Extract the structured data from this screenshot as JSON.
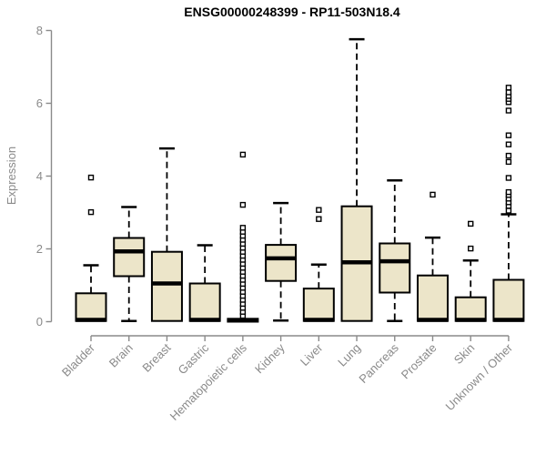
{
  "colors": {
    "box_fill": "#ECE5C9",
    "box_stroke": "#000000",
    "median": "#000000",
    "outlier_fill": "#ffffff",
    "axis": "#8a8a8a",
    "title": "#000000",
    "background": "#ffffff"
  },
  "chart_data": {
    "type": "boxplot",
    "title": "ENSG00000248399 - RP11-503N18.4",
    "ylabel": "Expression",
    "xlabel": "",
    "ylim": [
      0,
      8
    ],
    "yticks": [
      0,
      2,
      4,
      6,
      8
    ],
    "grid": false,
    "legend": "none",
    "categories": [
      "Bladder",
      "Brain",
      "Breast",
      "Gastric",
      "Hematopoietic cells",
      "Kidney",
      "Liver",
      "Lung",
      "Pancreas",
      "Prostate",
      "Skin",
      "Unknown / Other"
    ],
    "boxes": [
      {
        "whisker_low": 0.02,
        "q1": 0.02,
        "median": 0.05,
        "q3": 0.78,
        "whisker_high": 1.55,
        "outliers": [
          3.01,
          3.96
        ]
      },
      {
        "whisker_low": 0.02,
        "q1": 1.25,
        "median": 1.93,
        "q3": 2.3,
        "whisker_high": 3.15,
        "outliers": []
      },
      {
        "whisker_low": 0.02,
        "q1": 0.02,
        "median": 1.05,
        "q3": 1.92,
        "whisker_high": 4.76,
        "outliers": []
      },
      {
        "whisker_low": 0.02,
        "q1": 0.02,
        "median": 0.05,
        "q3": 1.05,
        "whisker_high": 2.1,
        "outliers": []
      },
      {
        "whisker_low": 0.0,
        "q1": 0.0,
        "median": 0.03,
        "q3": 0.08,
        "whisker_high": 0.1,
        "outliers": [
          0.16,
          0.27,
          0.38,
          0.49,
          0.6,
          0.71,
          0.82,
          0.93,
          1.04,
          1.15,
          1.26,
          1.37,
          1.48,
          1.59,
          1.7,
          1.81,
          1.92,
          2.03,
          2.14,
          2.25,
          2.36,
          2.47,
          2.58,
          3.21,
          4.59
        ]
      },
      {
        "whisker_low": 0.03,
        "q1": 1.12,
        "median": 1.74,
        "q3": 2.11,
        "whisker_high": 3.26,
        "outliers": []
      },
      {
        "whisker_low": 0.02,
        "q1": 0.02,
        "median": 0.05,
        "q3": 0.91,
        "whisker_high": 1.57,
        "outliers": [
          2.82,
          3.07
        ]
      },
      {
        "whisker_low": 0.02,
        "q1": 0.02,
        "median": 1.63,
        "q3": 3.17,
        "whisker_high": 7.76,
        "outliers": []
      },
      {
        "whisker_low": 0.02,
        "q1": 0.8,
        "median": 1.66,
        "q3": 2.15,
        "whisker_high": 3.88,
        "outliers": []
      },
      {
        "whisker_low": 0.02,
        "q1": 0.02,
        "median": 0.05,
        "q3": 1.27,
        "whisker_high": 2.31,
        "outliers": [
          3.49
        ]
      },
      {
        "whisker_low": 0.02,
        "q1": 0.02,
        "median": 0.05,
        "q3": 0.67,
        "whisker_high": 1.68,
        "outliers": [
          2.01,
          2.69
        ]
      },
      {
        "whisker_low": 0.02,
        "q1": 0.02,
        "median": 0.05,
        "q3": 1.15,
        "whisker_high": 2.95,
        "outliers": [
          3.05,
          3.18,
          3.28,
          3.38,
          3.48,
          3.56,
          3.95,
          4.39,
          4.56,
          4.87,
          5.12,
          5.8,
          6.03,
          6.12,
          6.2,
          6.3,
          6.43
        ]
      }
    ]
  }
}
